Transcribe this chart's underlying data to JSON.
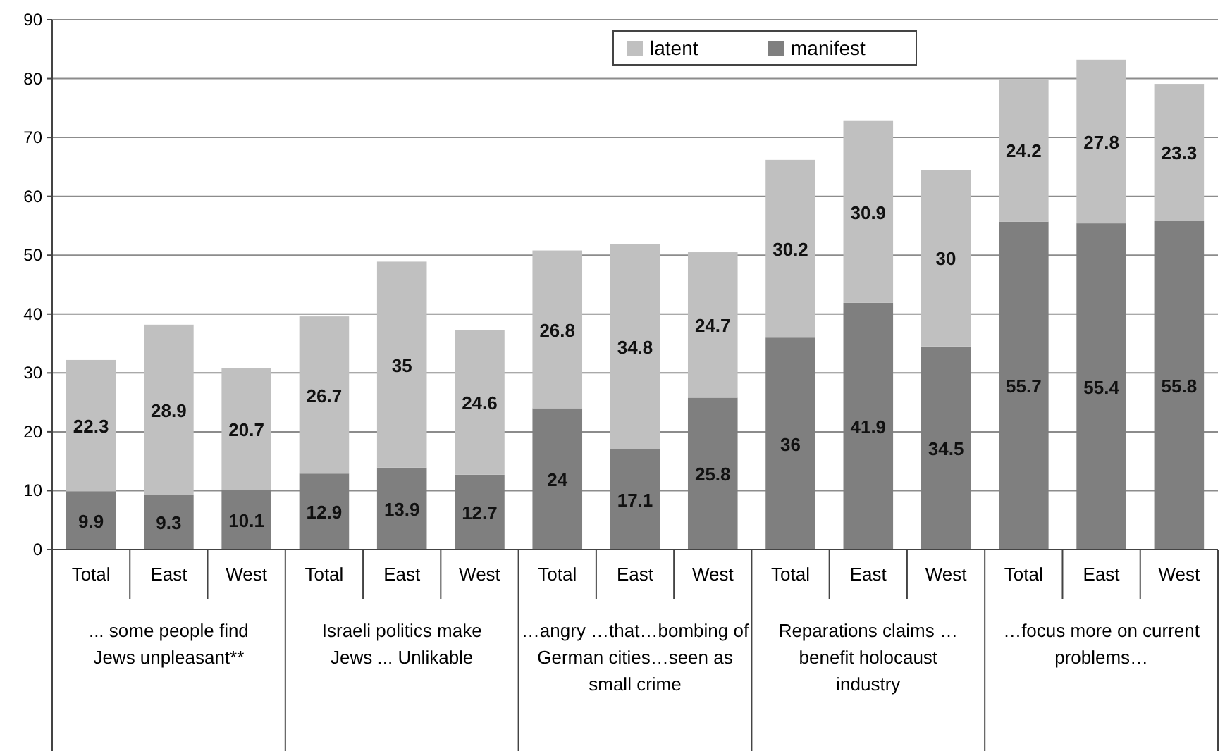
{
  "chart_data": {
    "type": "bar",
    "stacked": true,
    "categories": [
      "Total",
      "East",
      "West",
      "Total",
      "East",
      "West",
      "Total",
      "East",
      "West",
      "Total",
      "East",
      "West",
      "Total",
      "East",
      "West"
    ],
    "series": [
      {
        "name": "manifest",
        "color": "#7f7f7f",
        "values": [
          9.9,
          9.3,
          10.1,
          12.9,
          13.9,
          12.7,
          24,
          17.1,
          25.8,
          36,
          41.9,
          34.5,
          55.7,
          55.4,
          55.8
        ]
      },
      {
        "name": "latent",
        "color": "#c0c0c0",
        "values": [
          22.3,
          28.9,
          20.7,
          26.7,
          35,
          24.6,
          26.8,
          34.8,
          24.7,
          30.2,
          30.9,
          30,
          24.2,
          27.8,
          23.3
        ]
      }
    ],
    "annotations": [
      "... some people find Jews unpleasant**",
      "Israeli politics make Jews ... Unlikable",
      "…angry …that…bombing of German cities…seen as small crime",
      "Reparations claims … benefit holocaust industry",
      "…focus more on current problems…"
    ],
    "ylim": [
      0,
      90
    ],
    "yticks": [
      0,
      10,
      20,
      30,
      40,
      50,
      60,
      70,
      80,
      90
    ],
    "grid": "y",
    "legend": "top",
    "data_labels": true
  }
}
